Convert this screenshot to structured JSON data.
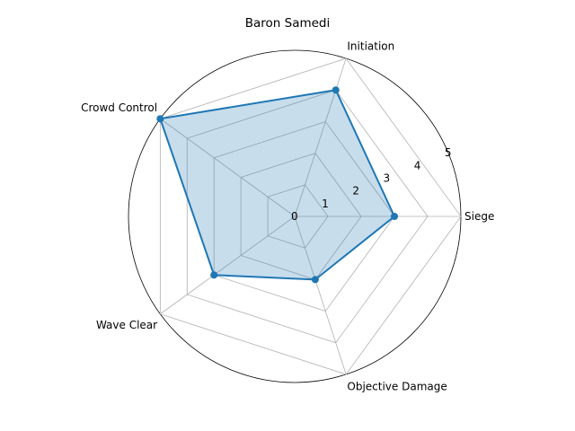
{
  "chart_data": {
    "type": "radar",
    "title": "Baron Samedi",
    "axes": [
      "Siege",
      "Initiation",
      "Crowd Control",
      "Wave Clear",
      "Objective Damage"
    ],
    "rticks": [
      "0",
      "1",
      "2",
      "3",
      "4",
      "5"
    ],
    "rlim": [
      0,
      5
    ],
    "grid": true,
    "series": [
      {
        "values": [
          3,
          4,
          5,
          3,
          2
        ],
        "color": "#1f77b4"
      }
    ]
  }
}
